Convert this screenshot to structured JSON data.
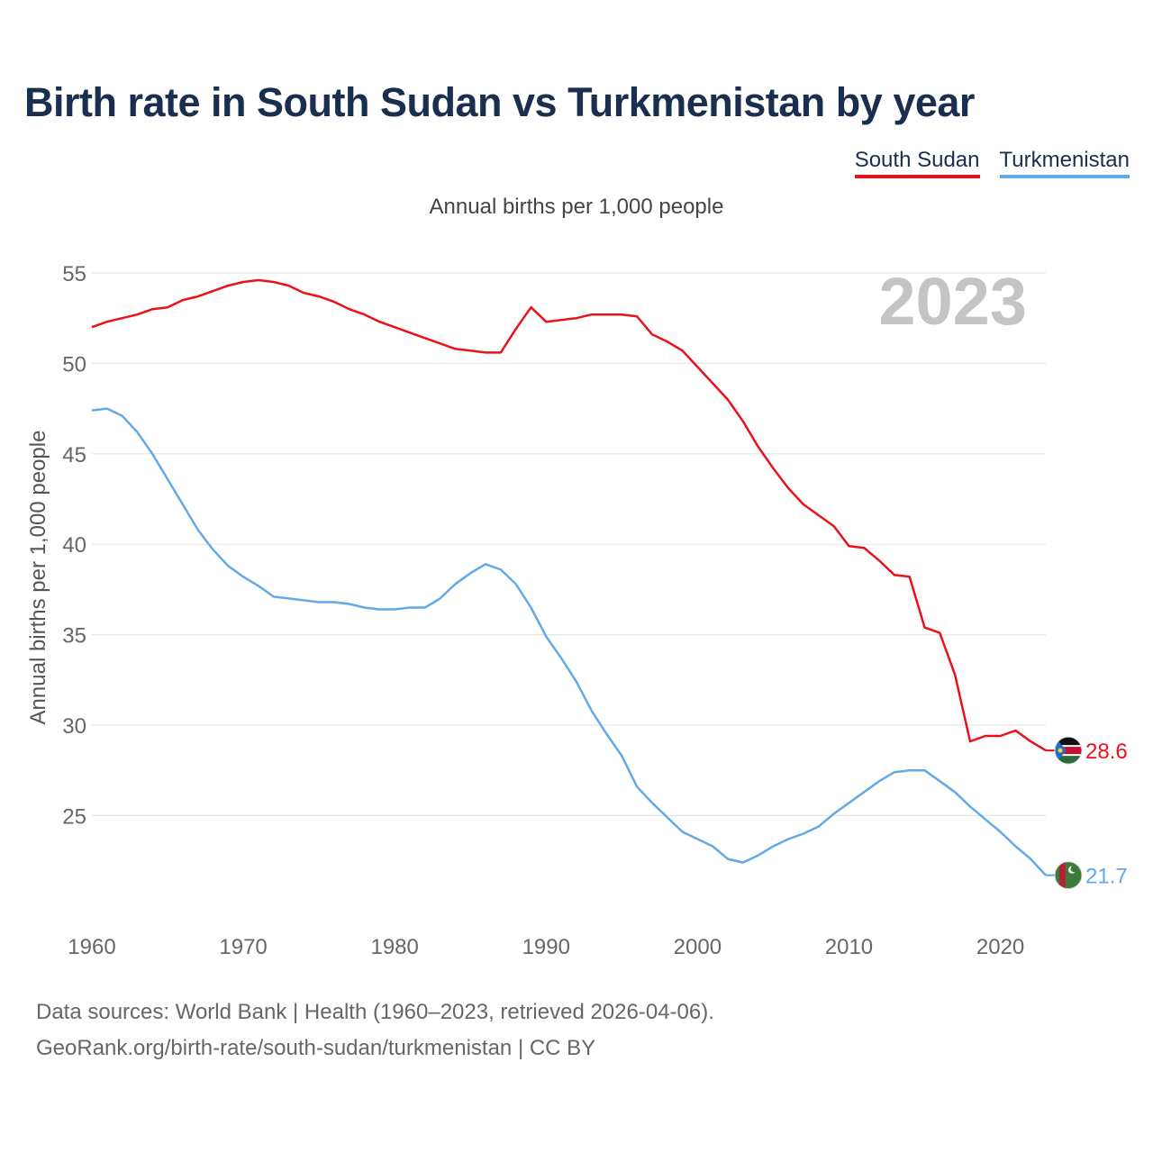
{
  "title": "Birth rate in South Sudan vs Turkmenistan by year",
  "legend": {
    "south_sudan": "South Sudan",
    "turkmenistan": "Turkmenistan"
  },
  "subtitle": "Annual births per 1,000 people",
  "footer": {
    "line1": "Data sources: World Bank | Health (1960–2023, retrieved 2026-04-06).",
    "line2": "GeoRank.org/birth-rate/south-sudan/turkmenistan | CC BY"
  },
  "chart_data": {
    "type": "line",
    "title": "Birth rate in South Sudan vs Turkmenistan by year",
    "ylabel": "Annual births per 1,000 people",
    "xlabel": "",
    "year_watermark": "2023",
    "xlim": [
      1960,
      2023
    ],
    "ylim": [
      20,
      56
    ],
    "x_ticks": [
      1960,
      1970,
      1980,
      1990,
      2000,
      2010,
      2020
    ],
    "y_ticks": [
      25,
      30,
      35,
      40,
      45,
      50,
      55
    ],
    "grid": true,
    "colors": {
      "south_sudan": "#e8131a",
      "turkmenistan": "#63a9e8",
      "tick": "#666666",
      "grid": "#e6e6e6",
      "watermark": "#c4c4c4"
    },
    "x": [
      1960,
      1961,
      1962,
      1963,
      1964,
      1965,
      1966,
      1967,
      1968,
      1969,
      1970,
      1971,
      1972,
      1973,
      1974,
      1975,
      1976,
      1977,
      1978,
      1979,
      1980,
      1981,
      1982,
      1983,
      1984,
      1985,
      1986,
      1987,
      1988,
      1989,
      1990,
      1991,
      1992,
      1993,
      1994,
      1995,
      1996,
      1997,
      1998,
      1999,
      2000,
      2001,
      2002,
      2003,
      2004,
      2005,
      2006,
      2007,
      2008,
      2009,
      2010,
      2011,
      2012,
      2013,
      2014,
      2015,
      2016,
      2017,
      2018,
      2019,
      2020,
      2021,
      2022,
      2023
    ],
    "series": [
      {
        "name": "South Sudan",
        "color": "#e8131a",
        "end_label": "28.6",
        "values": [
          52.0,
          52.3,
          52.5,
          52.7,
          53.0,
          53.1,
          53.5,
          53.7,
          54.0,
          54.3,
          54.5,
          54.6,
          54.5,
          54.3,
          53.9,
          53.7,
          53.4,
          53.0,
          52.7,
          52.3,
          52.0,
          51.7,
          51.4,
          51.1,
          50.8,
          50.7,
          50.6,
          50.6,
          51.9,
          53.1,
          52.3,
          52.4,
          52.5,
          52.7,
          52.7,
          52.7,
          52.6,
          51.6,
          51.2,
          50.7,
          49.8,
          48.9,
          48.0,
          46.8,
          45.4,
          44.2,
          43.1,
          42.2,
          41.6,
          41.0,
          39.9,
          39.8,
          39.1,
          38.3,
          38.2,
          35.4,
          35.1,
          32.8,
          29.1,
          29.4,
          29.4,
          29.7,
          29.1,
          28.6
        ]
      },
      {
        "name": "Turkmenistan",
        "color": "#63a9e8",
        "end_label": "21.7",
        "values": [
          47.4,
          47.5,
          47.1,
          46.2,
          45.0,
          43.6,
          42.2,
          40.8,
          39.7,
          38.8,
          38.2,
          37.7,
          37.1,
          37.0,
          36.9,
          36.8,
          36.8,
          36.7,
          36.5,
          36.4,
          36.4,
          36.5,
          36.5,
          37.0,
          37.8,
          38.4,
          38.9,
          38.6,
          37.8,
          36.5,
          34.9,
          33.7,
          32.4,
          30.8,
          29.5,
          28.3,
          26.6,
          25.7,
          24.9,
          24.1,
          23.7,
          23.3,
          22.6,
          22.4,
          22.8,
          23.3,
          23.7,
          24.0,
          24.4,
          25.1,
          25.7,
          26.3,
          26.9,
          27.4,
          27.5,
          27.5,
          26.9,
          26.3,
          25.5,
          24.8,
          24.1,
          23.3,
          22.6,
          21.7
        ]
      }
    ]
  }
}
